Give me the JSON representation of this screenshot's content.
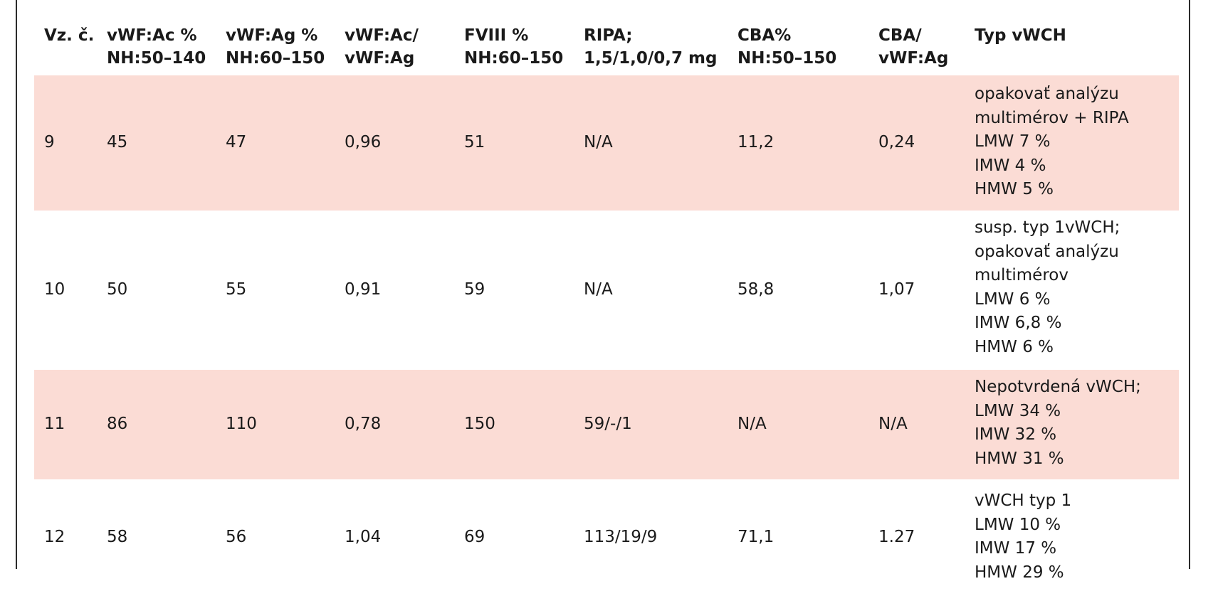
{
  "table": {
    "columns": [
      {
        "l1": "Vz. č.",
        "l2": ""
      },
      {
        "l1": "vWF:Ac %",
        "l2": "NH:50–140"
      },
      {
        "l1": "vWF:Ag  %",
        "l2": "NH:60–150"
      },
      {
        "l1": "vWF:Ac/",
        "l2": "vWF:Ag"
      },
      {
        "l1": "FVIII %",
        "l2": "NH:60–150"
      },
      {
        "l1": "RIPA;",
        "l2": "1,5/1,0/0,7 mg"
      },
      {
        "l1": "CBA%",
        "l2": "NH:50–150"
      },
      {
        "l1": "CBA/",
        "l2": "vWF:Ag"
      },
      {
        "l1": "Typ vWCH",
        "l2": ""
      }
    ],
    "rows": [
      {
        "cells": [
          "9",
          "45",
          "47",
          "0,96",
          "51",
          "N/A",
          "11,2",
          "0,24"
        ],
        "typ": [
          "opakovať analýzu",
          "multimérov + RIPA",
          "LMW 7 %",
          "IMW 4 %",
          "HMW 5 %"
        ]
      },
      {
        "cells": [
          "10",
          "50",
          "55",
          "0,91",
          "59",
          "N/A",
          "58,8",
          "1,07"
        ],
        "typ": [
          "susp. typ 1vWCH;",
          "opakovať analýzu",
          "multimérov",
          "LMW 6 %",
          "IMW 6,8 %",
          "HMW 6 %"
        ]
      },
      {
        "cells": [
          "11",
          "86",
          "110",
          "0,78",
          "150",
          "59/-/1",
          "N/A",
          "N/A"
        ],
        "typ": [
          "Nepotvrdená vWCH;",
          "LMW 34 %",
          "IMW 32 %",
          "HMW 31 %"
        ]
      },
      {
        "cells": [
          "12",
          "58",
          "56",
          "1,04",
          "69",
          "113/19/9",
          "71,1",
          "1.27"
        ],
        "typ": [
          "vWCH typ 1",
          "LMW 10 %",
          "IMW 17 %",
          "HMW 29 %"
        ]
      }
    ]
  },
  "colors": {
    "shade": "#fbdcd5",
    "border": "#2b2b2b",
    "accent": "#e3001b"
  }
}
